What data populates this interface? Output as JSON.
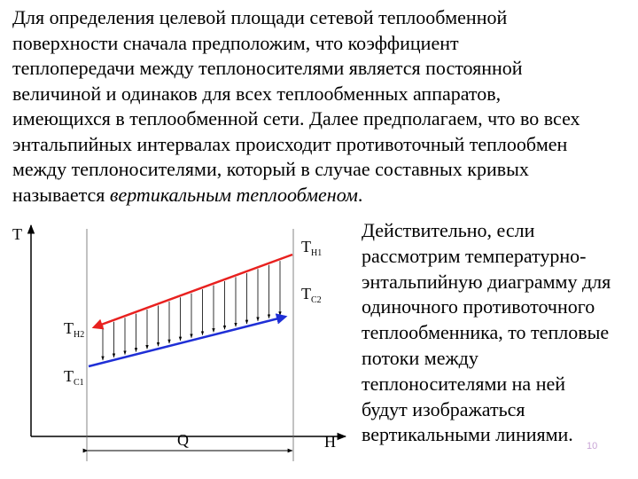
{
  "top_paragraph": {
    "lines": [
      "Для определения целевой площади сетевой теплообменной",
      "поверхности сначала предположим, что коэффициент",
      "теплопередачи между теплоносителями является постоянной",
      "величиной и одинаков для всех теплообменных аппаратов,",
      "имеющихся в теплообменной сети. Далее предполагаем, что во всех",
      "энтальпийных интервалах происходит противоточный теплообмен",
      "между теплоносителями, который в случае составных кривых"
    ],
    "last_line_prefix": "называется ",
    "last_line_emphasis": "вертикальным теплообменом",
    "last_line_suffix": "."
  },
  "right_paragraph": {
    "lines": [
      "Действительно, если",
      "рассмотрим температурно-",
      "энтальпийную диаграмму для",
      "одиночного противоточного",
      "теплообменника, то тепловые",
      "потоки между",
      "теплоносителями на ней",
      "будут изображаться",
      "вертикальными линиями."
    ]
  },
  "page_number": "10",
  "diagram": {
    "y_axis_label": "T",
    "x_axis_label": "H",
    "q_label": "Q",
    "hot_in": {
      "main": "T",
      "sub": "H1"
    },
    "hot_out": {
      "main": "T",
      "sub": "H2"
    },
    "cold_out": {
      "main": "T",
      "sub": "C2"
    },
    "cold_in": {
      "main": "T",
      "sub": "C1"
    },
    "colors": {
      "hot": "#e8211f",
      "cold": "#1f2fd6",
      "axis": "#000000",
      "guide": "#666666"
    }
  }
}
